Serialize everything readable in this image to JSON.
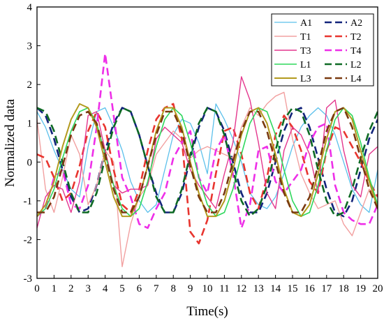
{
  "chart_data": {
    "type": "line",
    "xlabel": "Time(s)",
    "ylabel": "Normalized data",
    "xlim": [
      0,
      20
    ],
    "ylim": [
      -3,
      4
    ],
    "xticks": [
      0,
      1,
      2,
      3,
      4,
      5,
      6,
      7,
      8,
      9,
      10,
      11,
      12,
      13,
      14,
      15,
      16,
      17,
      18,
      19,
      20
    ],
    "yticks": [
      -3,
      -2,
      -1,
      0,
      1,
      2,
      3,
      4
    ],
    "grid": false,
    "legend_position": "top-right",
    "legend_columns": 2,
    "series": [
      {
        "name": "A1",
        "color": "#5BC0EB",
        "style": "solid",
        "width": 1.3,
        "x": [
          0,
          0.5,
          1,
          1.5,
          2,
          2.5,
          3,
          3.5,
          4,
          4.5,
          5,
          5.5,
          6,
          6.5,
          7,
          7.5,
          8,
          8.5,
          9,
          9.5,
          10,
          10.5,
          11,
          11.5,
          12,
          12.5,
          13,
          13.5,
          14,
          14.5,
          15,
          15.5,
          16,
          16.5,
          17,
          17.5,
          18,
          18.5,
          19,
          19.5,
          20
        ],
        "y": [
          1.3,
          0.9,
          0.3,
          -0.2,
          -0.7,
          -0.9,
          0.4,
          1.3,
          1.4,
          0.9,
          0.3,
          -0.5,
          -1.0,
          -1.3,
          -1.1,
          -0.2,
          0.7,
          1.1,
          1.0,
          0.5,
          -0.3,
          1.5,
          1.1,
          0.6,
          0.0,
          -0.8,
          -1.1,
          -1.2,
          -0.9,
          -0.3,
          0.4,
          0.9,
          1.2,
          1.4,
          1.2,
          0.7,
          0.0,
          -0.7,
          -1.1,
          -1.3,
          -0.2
        ]
      },
      {
        "name": "A2",
        "color": "#12237A",
        "style": "dashed",
        "width": 2.6,
        "x": [
          0,
          0.5,
          1,
          1.5,
          2,
          2.5,
          3,
          3.5,
          4,
          4.5,
          5,
          5.5,
          6,
          6.5,
          7,
          7.5,
          8,
          8.5,
          9,
          9.5,
          10,
          10.5,
          11,
          11.5,
          12,
          12.5,
          13,
          13.5,
          14,
          14.5,
          15,
          15.5,
          16,
          16.5,
          17,
          17.5,
          18,
          18.5,
          19,
          19.5,
          20
        ],
        "y": [
          1.4,
          1.2,
          0.6,
          -0.2,
          -0.9,
          -1.3,
          -1.2,
          -0.6,
          0.3,
          1.0,
          1.4,
          1.3,
          0.7,
          -0.1,
          -0.8,
          -1.3,
          -1.3,
          -0.8,
          0.1,
          0.9,
          1.4,
          1.3,
          0.8,
          0.0,
          -0.8,
          -1.3,
          -1.3,
          -0.8,
          0.0,
          0.8,
          1.3,
          1.4,
          0.9,
          0.1,
          -0.7,
          -1.3,
          -1.4,
          -1.0,
          -0.2,
          0.6,
          1.1
        ]
      },
      {
        "name": "T1",
        "color": "#F2A0A0",
        "style": "solid",
        "width": 1.4,
        "x": [
          0,
          0.5,
          1,
          1.5,
          2,
          2.5,
          3,
          3.5,
          4,
          4.5,
          5,
          5.5,
          6,
          6.5,
          7,
          7.5,
          8,
          8.5,
          9,
          9.5,
          10,
          10.5,
          11,
          11.5,
          12,
          12.5,
          13,
          13.5,
          14,
          14.5,
          15,
          15.5,
          16,
          16.5,
          17,
          17.5,
          18,
          18.5,
          19,
          19.5,
          20
        ],
        "y": [
          1.1,
          -0.7,
          -1.3,
          -0.4,
          0.7,
          0.2,
          -1.1,
          -0.6,
          0.3,
          0.0,
          -2.7,
          -1.6,
          -0.9,
          -0.6,
          0.2,
          0.5,
          0.8,
          0.6,
          0.1,
          0.3,
          0.4,
          0.3,
          0.2,
          0.1,
          0.9,
          1.4,
          1.2,
          1.5,
          1.7,
          1.8,
          0.6,
          -0.3,
          -0.8,
          -1.2,
          -1.1,
          -1.0,
          -1.6,
          -1.9,
          -1.3,
          -0.7,
          -0.9
        ]
      },
      {
        "name": "T2",
        "color": "#E8352F",
        "style": "dashed",
        "width": 2.6,
        "x": [
          0,
          0.5,
          1,
          1.5,
          2,
          2.5,
          3,
          3.5,
          4,
          4.5,
          5,
          5.5,
          6,
          6.5,
          7,
          7.5,
          8,
          8.5,
          9,
          9.5,
          10,
          10.5,
          11,
          11.5,
          12,
          12.5,
          13,
          13.5,
          14,
          14.5,
          15,
          15.5,
          16,
          16.5,
          17,
          17.5,
          18,
          18.5,
          19,
          19.5,
          20
        ],
        "y": [
          0.2,
          0.1,
          -0.4,
          -1.0,
          -0.8,
          -0.1,
          0.8,
          1.3,
          0.9,
          -0.2,
          -1.1,
          -1.3,
          -0.7,
          0.3,
          1.1,
          1.4,
          1.5,
          0.6,
          -1.8,
          -2.1,
          -1.5,
          -0.3,
          0.8,
          0.9,
          0.2,
          -0.8,
          -1.2,
          -0.4,
          0.7,
          1.2,
          0.9,
          0.3,
          -0.5,
          -0.8,
          0.3,
          0.9,
          0.8,
          0.4,
          0.0,
          -0.5,
          -0.9
        ]
      },
      {
        "name": "T3",
        "color": "#E4378E",
        "style": "solid",
        "width": 1.4,
        "x": [
          0,
          0.5,
          1,
          1.5,
          2,
          2.5,
          3,
          3.5,
          4,
          4.5,
          5,
          5.5,
          6,
          6.5,
          7,
          7.5,
          8,
          8.5,
          9,
          9.5,
          10,
          10.5,
          11,
          11.5,
          12,
          12.5,
          13,
          13.5,
          14,
          14.5,
          15,
          15.5,
          16,
          16.5,
          17,
          17.5,
          18,
          18.5,
          19,
          19.5,
          20
        ],
        "y": [
          -1.7,
          -0.9,
          -0.6,
          -0.7,
          -1.3,
          -0.5,
          1.2,
          1.3,
          0.3,
          -0.6,
          -0.8,
          -0.7,
          -0.7,
          -0.6,
          0.6,
          0.9,
          0.7,
          0.5,
          -0.2,
          -0.6,
          -0.9,
          -1.2,
          -0.3,
          0.5,
          2.2,
          1.6,
          0.5,
          -0.8,
          -1.2,
          0.3,
          0.9,
          0.7,
          0.2,
          -0.8,
          1.4,
          1.6,
          0.3,
          -0.6,
          -0.9,
          0.2,
          0.4
        ]
      },
      {
        "name": "T4",
        "color": "#EE2FE8",
        "style": "dashed",
        "width": 2.6,
        "x": [
          0,
          0.5,
          1,
          1.5,
          2,
          2.5,
          3,
          3.5,
          4,
          4.5,
          5,
          5.5,
          6,
          6.5,
          7,
          7.5,
          8,
          8.5,
          9,
          9.5,
          10,
          10.5,
          11,
          11.5,
          12,
          12.5,
          13,
          13.5,
          14,
          14.5,
          15,
          15.5,
          16,
          16.5,
          17,
          17.5,
          18,
          18.5,
          19,
          19.5,
          20
        ],
        "y": [
          -1.4,
          -1.2,
          -0.4,
          -0.2,
          -1.1,
          -1.2,
          -0.6,
          0.9,
          2.8,
          1.2,
          -0.4,
          -0.9,
          -1.6,
          -1.7,
          -1.2,
          -0.8,
          0.1,
          0.5,
          0.8,
          -0.4,
          -0.8,
          0.3,
          0.7,
          -0.3,
          -1.7,
          -1.1,
          0.3,
          0.4,
          -0.5,
          -0.8,
          -0.5,
          -0.2,
          0.5,
          0.9,
          1.0,
          -0.6,
          -1.3,
          -1.5,
          -1.6,
          -1.6,
          -1.1
        ]
      },
      {
        "name": "L1",
        "color": "#2ED85C",
        "style": "solid",
        "width": 1.6,
        "x": [
          0,
          0.5,
          1,
          1.5,
          2,
          2.5,
          3,
          3.5,
          4,
          4.5,
          5,
          5.5,
          6,
          6.5,
          7,
          7.5,
          8,
          8.5,
          9,
          9.5,
          10,
          10.5,
          11,
          11.5,
          12,
          12.5,
          13,
          13.5,
          14,
          14.5,
          15,
          15.5,
          16,
          16.5,
          17,
          17.5,
          18,
          18.5,
          19,
          19.5,
          20
        ],
        "y": [
          -1.4,
          -1.2,
          -0.7,
          0.1,
          0.8,
          1.3,
          1.4,
          1.0,
          0.2,
          -0.6,
          -1.2,
          -1.4,
          -1.2,
          -0.5,
          0.4,
          1.1,
          1.4,
          1.2,
          0.5,
          -0.4,
          -1.1,
          -1.4,
          -1.3,
          -0.7,
          0.2,
          1.0,
          1.4,
          1.3,
          0.7,
          -0.2,
          -1.0,
          -1.4,
          -1.3,
          -0.6,
          0.3,
          1.1,
          1.4,
          1.2,
          0.5,
          -0.4,
          -1.1
        ]
      },
      {
        "name": "L2",
        "color": "#0E6A24",
        "style": "dashed",
        "width": 2.6,
        "x": [
          0,
          0.5,
          1,
          1.5,
          2,
          2.5,
          3,
          3.5,
          4,
          4.5,
          5,
          5.5,
          6,
          6.5,
          7,
          7.5,
          8,
          8.5,
          9,
          9.5,
          10,
          10.5,
          11,
          11.5,
          12,
          12.5,
          13,
          13.5,
          14,
          14.5,
          15,
          15.5,
          16,
          16.5,
          17,
          17.5,
          18,
          18.5,
          19,
          19.5,
          20
        ],
        "y": [
          1.4,
          1.3,
          0.8,
          0.0,
          -0.8,
          -1.3,
          -1.3,
          -0.8,
          0.1,
          0.9,
          1.4,
          1.3,
          0.7,
          -0.1,
          -0.9,
          -1.3,
          -1.3,
          -0.7,
          0.2,
          1.0,
          1.4,
          1.3,
          0.7,
          -0.2,
          -1.0,
          -1.4,
          -1.2,
          -0.6,
          0.3,
          1.1,
          1.4,
          1.3,
          0.7,
          -0.2,
          -1.0,
          -1.4,
          -1.3,
          -0.7,
          0.1,
          0.8,
          1.3
        ]
      },
      {
        "name": "L3",
        "color": "#B39A1E",
        "style": "solid",
        "width": 2.0,
        "x": [
          0,
          0.5,
          1,
          1.5,
          2,
          2.5,
          3,
          3.5,
          4,
          4.5,
          5,
          5.5,
          6,
          6.5,
          7,
          7.5,
          8,
          8.5,
          9,
          9.5,
          10,
          10.5,
          11,
          11.5,
          12,
          12.5,
          13,
          13.5,
          14,
          14.5,
          15,
          15.5,
          16,
          16.5,
          17,
          17.5,
          18,
          18.5,
          19,
          19.5,
          20
        ],
        "y": [
          -1.4,
          -1.1,
          -0.5,
          0.4,
          1.1,
          1.5,
          1.4,
          0.9,
          0.0,
          -0.9,
          -1.4,
          -1.4,
          -0.9,
          -0.1,
          0.8,
          1.4,
          1.4,
          0.9,
          0.0,
          -0.8,
          -1.4,
          -1.4,
          -1.0,
          -0.2,
          0.7,
          1.3,
          1.4,
          1.0,
          0.2,
          -0.7,
          -1.3,
          -1.4,
          -1.1,
          -0.3,
          0.6,
          1.3,
          1.4,
          1.1,
          0.3,
          -0.5,
          -1.2
        ]
      },
      {
        "name": "L4",
        "color": "#7A3A10",
        "style": "dashed",
        "width": 2.6,
        "x": [
          0,
          0.5,
          1,
          1.5,
          2,
          2.5,
          3,
          3.5,
          4,
          4.5,
          5,
          5.5,
          6,
          6.5,
          7,
          7.5,
          8,
          8.5,
          9,
          9.5,
          10,
          10.5,
          11,
          11.5,
          12,
          12.5,
          13,
          13.5,
          14,
          14.5,
          15,
          15.5,
          16,
          16.5,
          17,
          17.5,
          18,
          18.5,
          19,
          19.5,
          20
        ],
        "y": [
          -1.3,
          -1.3,
          -0.9,
          -0.1,
          0.7,
          1.2,
          1.3,
          1.0,
          0.2,
          -0.7,
          -1.3,
          -1.3,
          -0.9,
          -0.1,
          0.7,
          1.3,
          1.3,
          0.8,
          -0.1,
          -0.9,
          -1.3,
          -1.3,
          -0.8,
          0.0,
          0.8,
          1.3,
          1.3,
          0.8,
          0.0,
          -0.8,
          -1.3,
          -1.3,
          -0.9,
          -0.1,
          0.8,
          1.3,
          1.4,
          0.9,
          0.1,
          -0.7,
          -1.2
        ]
      }
    ]
  }
}
